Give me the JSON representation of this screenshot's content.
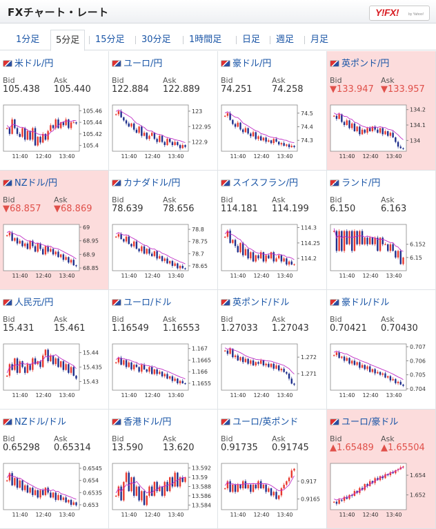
{
  "header": {
    "title": "FXチャート・レート",
    "logo_text": "Y!FX!",
    "logo_sub": "by Yahoo!"
  },
  "tabs": [
    {
      "label": "1分足",
      "active": false
    },
    {
      "label": "5分足",
      "active": true
    },
    {
      "label": "15分足",
      "active": false
    },
    {
      "label": "30分足",
      "active": false
    },
    {
      "label": "1時間足",
      "active": false
    },
    {
      "label": "日足",
      "active": false
    },
    {
      "label": "週足",
      "active": false
    },
    {
      "label": "月足",
      "active": false
    }
  ],
  "labels": {
    "bid": "Bid",
    "ask": "Ask"
  },
  "colors": {
    "up": "#e8392f",
    "down": "#1f2f8c",
    "ma": "#c02fc6",
    "alert_bg": "#fcdcdc",
    "down_text": "#e0504a",
    "link": "#1a55a6"
  },
  "panels": [
    {
      "name": "米ドル/円",
      "bid": "105.438",
      "ask": "105.440",
      "alert": false,
      "yticks": [
        "105.46",
        "105.44",
        "105.42",
        "105.4"
      ],
      "yrange": [
        105.39,
        105.47
      ],
      "series": [
        105.43,
        105.42,
        105.445,
        105.43,
        105.42,
        105.415,
        105.43,
        105.41,
        105.425,
        105.41,
        105.43,
        105.4,
        105.415,
        105.405,
        105.42,
        105.41,
        105.425,
        105.435,
        105.43,
        105.445,
        105.43,
        105.44,
        105.435,
        105.445,
        105.43,
        105.44,
        105.44,
        105.438
      ]
    },
    {
      "name": "ユーロ/円",
      "bid": "122.884",
      "ask": "122.889",
      "alert": false,
      "yticks": [
        "123",
        "122.95",
        "122.9"
      ],
      "yrange": [
        122.87,
        123.02
      ],
      "series": [
        122.99,
        123.0,
        122.98,
        122.97,
        122.96,
        122.95,
        122.96,
        122.94,
        122.93,
        122.95,
        122.92,
        122.93,
        122.91,
        122.92,
        122.93,
        122.91,
        122.9,
        122.92,
        122.9,
        122.89,
        122.91,
        122.9,
        122.89,
        122.9,
        122.89,
        122.88,
        122.89,
        122.884
      ]
    },
    {
      "name": "豪ドル/円",
      "bid": "74.251",
      "ask": "74.258",
      "alert": false,
      "yticks": [
        "74.5",
        "74.4",
        "74.3"
      ],
      "yrange": [
        74.22,
        74.56
      ],
      "series": [
        74.48,
        74.5,
        74.45,
        74.42,
        74.4,
        74.43,
        74.38,
        74.36,
        74.39,
        74.35,
        74.33,
        74.36,
        74.31,
        74.33,
        74.3,
        74.32,
        74.29,
        74.3,
        74.28,
        74.31,
        74.29,
        74.27,
        74.28,
        74.26,
        74.27,
        74.25,
        74.26,
        74.251
      ]
    },
    {
      "name": "英ポンド/円",
      "bid": "▼133.947",
      "ask": "▼133.957",
      "alert": true,
      "yticks": [
        "134.2",
        "134.1",
        "134"
      ],
      "yrange": [
        133.93,
        134.23
      ],
      "series": [
        134.16,
        134.14,
        134.17,
        134.12,
        134.1,
        134.13,
        134.08,
        134.11,
        134.06,
        134.09,
        134.04,
        134.07,
        134.05,
        134.08,
        134.06,
        134.09,
        134.07,
        134.05,
        134.08,
        134.04,
        134.06,
        134.03,
        134.05,
        134.02,
        133.99,
        133.96,
        133.95,
        133.947
      ]
    },
    {
      "name": "NZドル/円",
      "bid": "▼68.857",
      "ask": "▼68.869",
      "alert": true,
      "yticks": [
        "69",
        "68.95",
        "68.9",
        "68.85"
      ],
      "yrange": [
        68.84,
        69.01
      ],
      "series": [
        68.97,
        68.98,
        68.95,
        68.96,
        68.94,
        68.95,
        68.93,
        68.94,
        68.92,
        68.95,
        68.93,
        68.91,
        68.94,
        68.92,
        68.9,
        68.93,
        68.91,
        68.92,
        68.9,
        68.91,
        68.89,
        68.9,
        68.88,
        68.89,
        68.87,
        68.88,
        68.86,
        68.857
      ]
    },
    {
      "name": "カナダドル/円",
      "bid": "78.639",
      "ask": "78.656",
      "alert": false,
      "yticks": [
        "78.8",
        "78.75",
        "78.7",
        "78.65"
      ],
      "yrange": [
        78.63,
        78.82
      ],
      "series": [
        78.77,
        78.78,
        78.76,
        78.75,
        78.77,
        78.74,
        78.73,
        78.75,
        78.72,
        78.71,
        78.73,
        78.7,
        78.72,
        78.7,
        78.69,
        78.71,
        78.68,
        78.69,
        78.67,
        78.68,
        78.66,
        78.67,
        78.65,
        78.66,
        78.64,
        78.65,
        78.64,
        78.639
      ]
    },
    {
      "name": "スイスフラン/円",
      "bid": "114.181",
      "ask": "114.199",
      "alert": false,
      "yticks": [
        "114.3",
        "114.25",
        "114.2"
      ],
      "yrange": [
        114.16,
        114.31
      ],
      "series": [
        114.27,
        114.29,
        114.25,
        114.26,
        114.24,
        114.22,
        114.25,
        114.21,
        114.23,
        114.2,
        114.22,
        114.19,
        114.21,
        114.2,
        114.22,
        114.19,
        114.21,
        114.2,
        114.22,
        114.19,
        114.2,
        114.21,
        114.19,
        114.2,
        114.18,
        114.19,
        114.18,
        114.181
      ]
    },
    {
      "name": "ランド/円",
      "bid": "6.150",
      "ask": "6.163",
      "alert": false,
      "yticks": [
        "6.152",
        "6.15"
      ],
      "yrange": [
        6.148,
        6.155
      ],
      "series": [
        6.154,
        6.151,
        6.154,
        6.151,
        6.154,
        6.152,
        6.154,
        6.151,
        6.154,
        6.152,
        6.154,
        6.152,
        6.153,
        6.152,
        6.153,
        6.152,
        6.153,
        6.151,
        6.153,
        6.152,
        6.152,
        6.151,
        6.152,
        6.151,
        6.15,
        6.151,
        6.149,
        6.15
      ]
    },
    {
      "name": "人民元/円",
      "bid": "15.431",
      "ask": "15.461",
      "alert": false,
      "yticks": [
        "15.44",
        "15.435",
        "15.43"
      ],
      "yrange": [
        15.427,
        15.443
      ],
      "series": [
        15.432,
        15.436,
        15.434,
        15.438,
        15.433,
        15.437,
        15.435,
        15.433,
        15.436,
        15.434,
        15.438,
        15.436,
        15.437,
        15.435,
        15.439,
        15.441,
        15.437,
        15.439,
        15.436,
        15.438,
        15.435,
        15.437,
        15.434,
        15.436,
        15.433,
        15.435,
        15.432,
        15.431
      ]
    },
    {
      "name": "ユーロ/ドル",
      "bid": "1.16549",
      "ask": "1.16553",
      "alert": false,
      "yticks": [
        "1.167",
        "1.1665",
        "1.166",
        "1.1655"
      ],
      "yrange": [
        1.1652,
        1.1672
      ],
      "series": [
        1.1664,
        1.1666,
        1.1663,
        1.1665,
        1.1662,
        1.1664,
        1.1661,
        1.1663,
        1.1662,
        1.166,
        1.1663,
        1.1661,
        1.166,
        1.1662,
        1.1659,
        1.1661,
        1.1659,
        1.166,
        1.1658,
        1.1659,
        1.1657,
        1.1658,
        1.1656,
        1.1657,
        1.1655,
        1.1656,
        1.1655,
        1.16549
      ]
    },
    {
      "name": "英ポンド/ドル",
      "bid": "1.27033",
      "ask": "1.27043",
      "alert": false,
      "yticks": [
        "1.272",
        "1.271"
      ],
      "yrange": [
        1.27,
        1.2728
      ],
      "series": [
        1.2724,
        1.2722,
        1.2725,
        1.272,
        1.2721,
        1.2718,
        1.272,
        1.2717,
        1.2719,
        1.2716,
        1.2718,
        1.2715,
        1.2717,
        1.2716,
        1.2718,
        1.2715,
        1.2716,
        1.2714,
        1.2716,
        1.2713,
        1.2715,
        1.2712,
        1.2713,
        1.2711,
        1.271,
        1.2707,
        1.2704,
        1.27033
      ]
    },
    {
      "name": "豪ドル/ドル",
      "bid": "0.70421",
      "ask": "0.70430",
      "alert": false,
      "yticks": [
        "0.707",
        "0.706",
        "0.705",
        "0.704"
      ],
      "yrange": [
        0.7039,
        0.7072
      ],
      "series": [
        0.7064,
        0.7066,
        0.7062,
        0.7063,
        0.706,
        0.7062,
        0.7058,
        0.706,
        0.7057,
        0.7059,
        0.7055,
        0.7057,
        0.7054,
        0.7056,
        0.7052,
        0.7054,
        0.7051,
        0.7052,
        0.705,
        0.7051,
        0.7048,
        0.7049,
        0.7046,
        0.7047,
        0.7044,
        0.7045,
        0.7043,
        0.70421
      ]
    },
    {
      "name": "NZドル/ドル",
      "bid": "0.65298",
      "ask": "0.65314",
      "alert": false,
      "yticks": [
        "0.6545",
        "0.654",
        "0.6535",
        "0.653"
      ],
      "yrange": [
        0.6528,
        0.6547
      ],
      "series": [
        0.654,
        0.6543,
        0.6538,
        0.6541,
        0.6537,
        0.654,
        0.6536,
        0.6538,
        0.6535,
        0.6537,
        0.6534,
        0.6536,
        0.6533,
        0.6536,
        0.6534,
        0.6537,
        0.6535,
        0.6533,
        0.6535,
        0.6532,
        0.6534,
        0.6532,
        0.6533,
        0.6531,
        0.6532,
        0.653,
        0.6531,
        0.65298
      ]
    },
    {
      "name": "香港ドル/円",
      "bid": "13.590",
      "ask": "13.620",
      "alert": false,
      "yticks": [
        "13.592",
        "13.59",
        "13.588",
        "13.586",
        "13.584"
      ],
      "yrange": [
        13.583,
        13.593
      ],
      "series": [
        13.586,
        13.588,
        13.585,
        13.589,
        13.591,
        13.587,
        13.59,
        13.586,
        13.588,
        13.585,
        13.587,
        13.584,
        13.586,
        13.588,
        13.586,
        13.589,
        13.587,
        13.588,
        13.586,
        13.589,
        13.587,
        13.59,
        13.588,
        13.591,
        13.588,
        13.59,
        13.589,
        13.59
      ]
    },
    {
      "name": "ユーロ/英ポンド",
      "bid": "0.91735",
      "ask": "0.91745",
      "alert": false,
      "yticks": [
        "0.917",
        "0.9165"
      ],
      "yrange": [
        0.9162,
        0.9175
      ],
      "series": [
        0.9168,
        0.917,
        0.9167,
        0.9169,
        0.9167,
        0.9169,
        0.9168,
        0.917,
        0.9168,
        0.9169,
        0.9167,
        0.9169,
        0.9168,
        0.917,
        0.9168,
        0.9169,
        0.9167,
        0.9168,
        0.9166,
        0.9167,
        0.9165,
        0.9166,
        0.9168,
        0.9169,
        0.917,
        0.9171,
        0.9173,
        0.91735
      ]
    },
    {
      "name": "ユーロ/豪ドル",
      "bid": "▲1.65489",
      "ask": "▲1.65504",
      "alert": true,
      "yticks": [
        "1.654",
        "1.652"
      ],
      "yrange": [
        1.6505,
        1.6552
      ],
      "series": [
        1.6513,
        1.6511,
        1.6515,
        1.6514,
        1.6518,
        1.6516,
        1.652,
        1.6519,
        1.6524,
        1.6522,
        1.6527,
        1.6525,
        1.6531,
        1.6529,
        1.6534,
        1.6532,
        1.6537,
        1.6535,
        1.6539,
        1.6537,
        1.6541,
        1.654,
        1.6543,
        1.6542,
        1.6545,
        1.6546,
        1.6548,
        1.65489
      ]
    }
  ],
  "xticks": [
    "11:40",
    "12:40",
    "13:40"
  ]
}
